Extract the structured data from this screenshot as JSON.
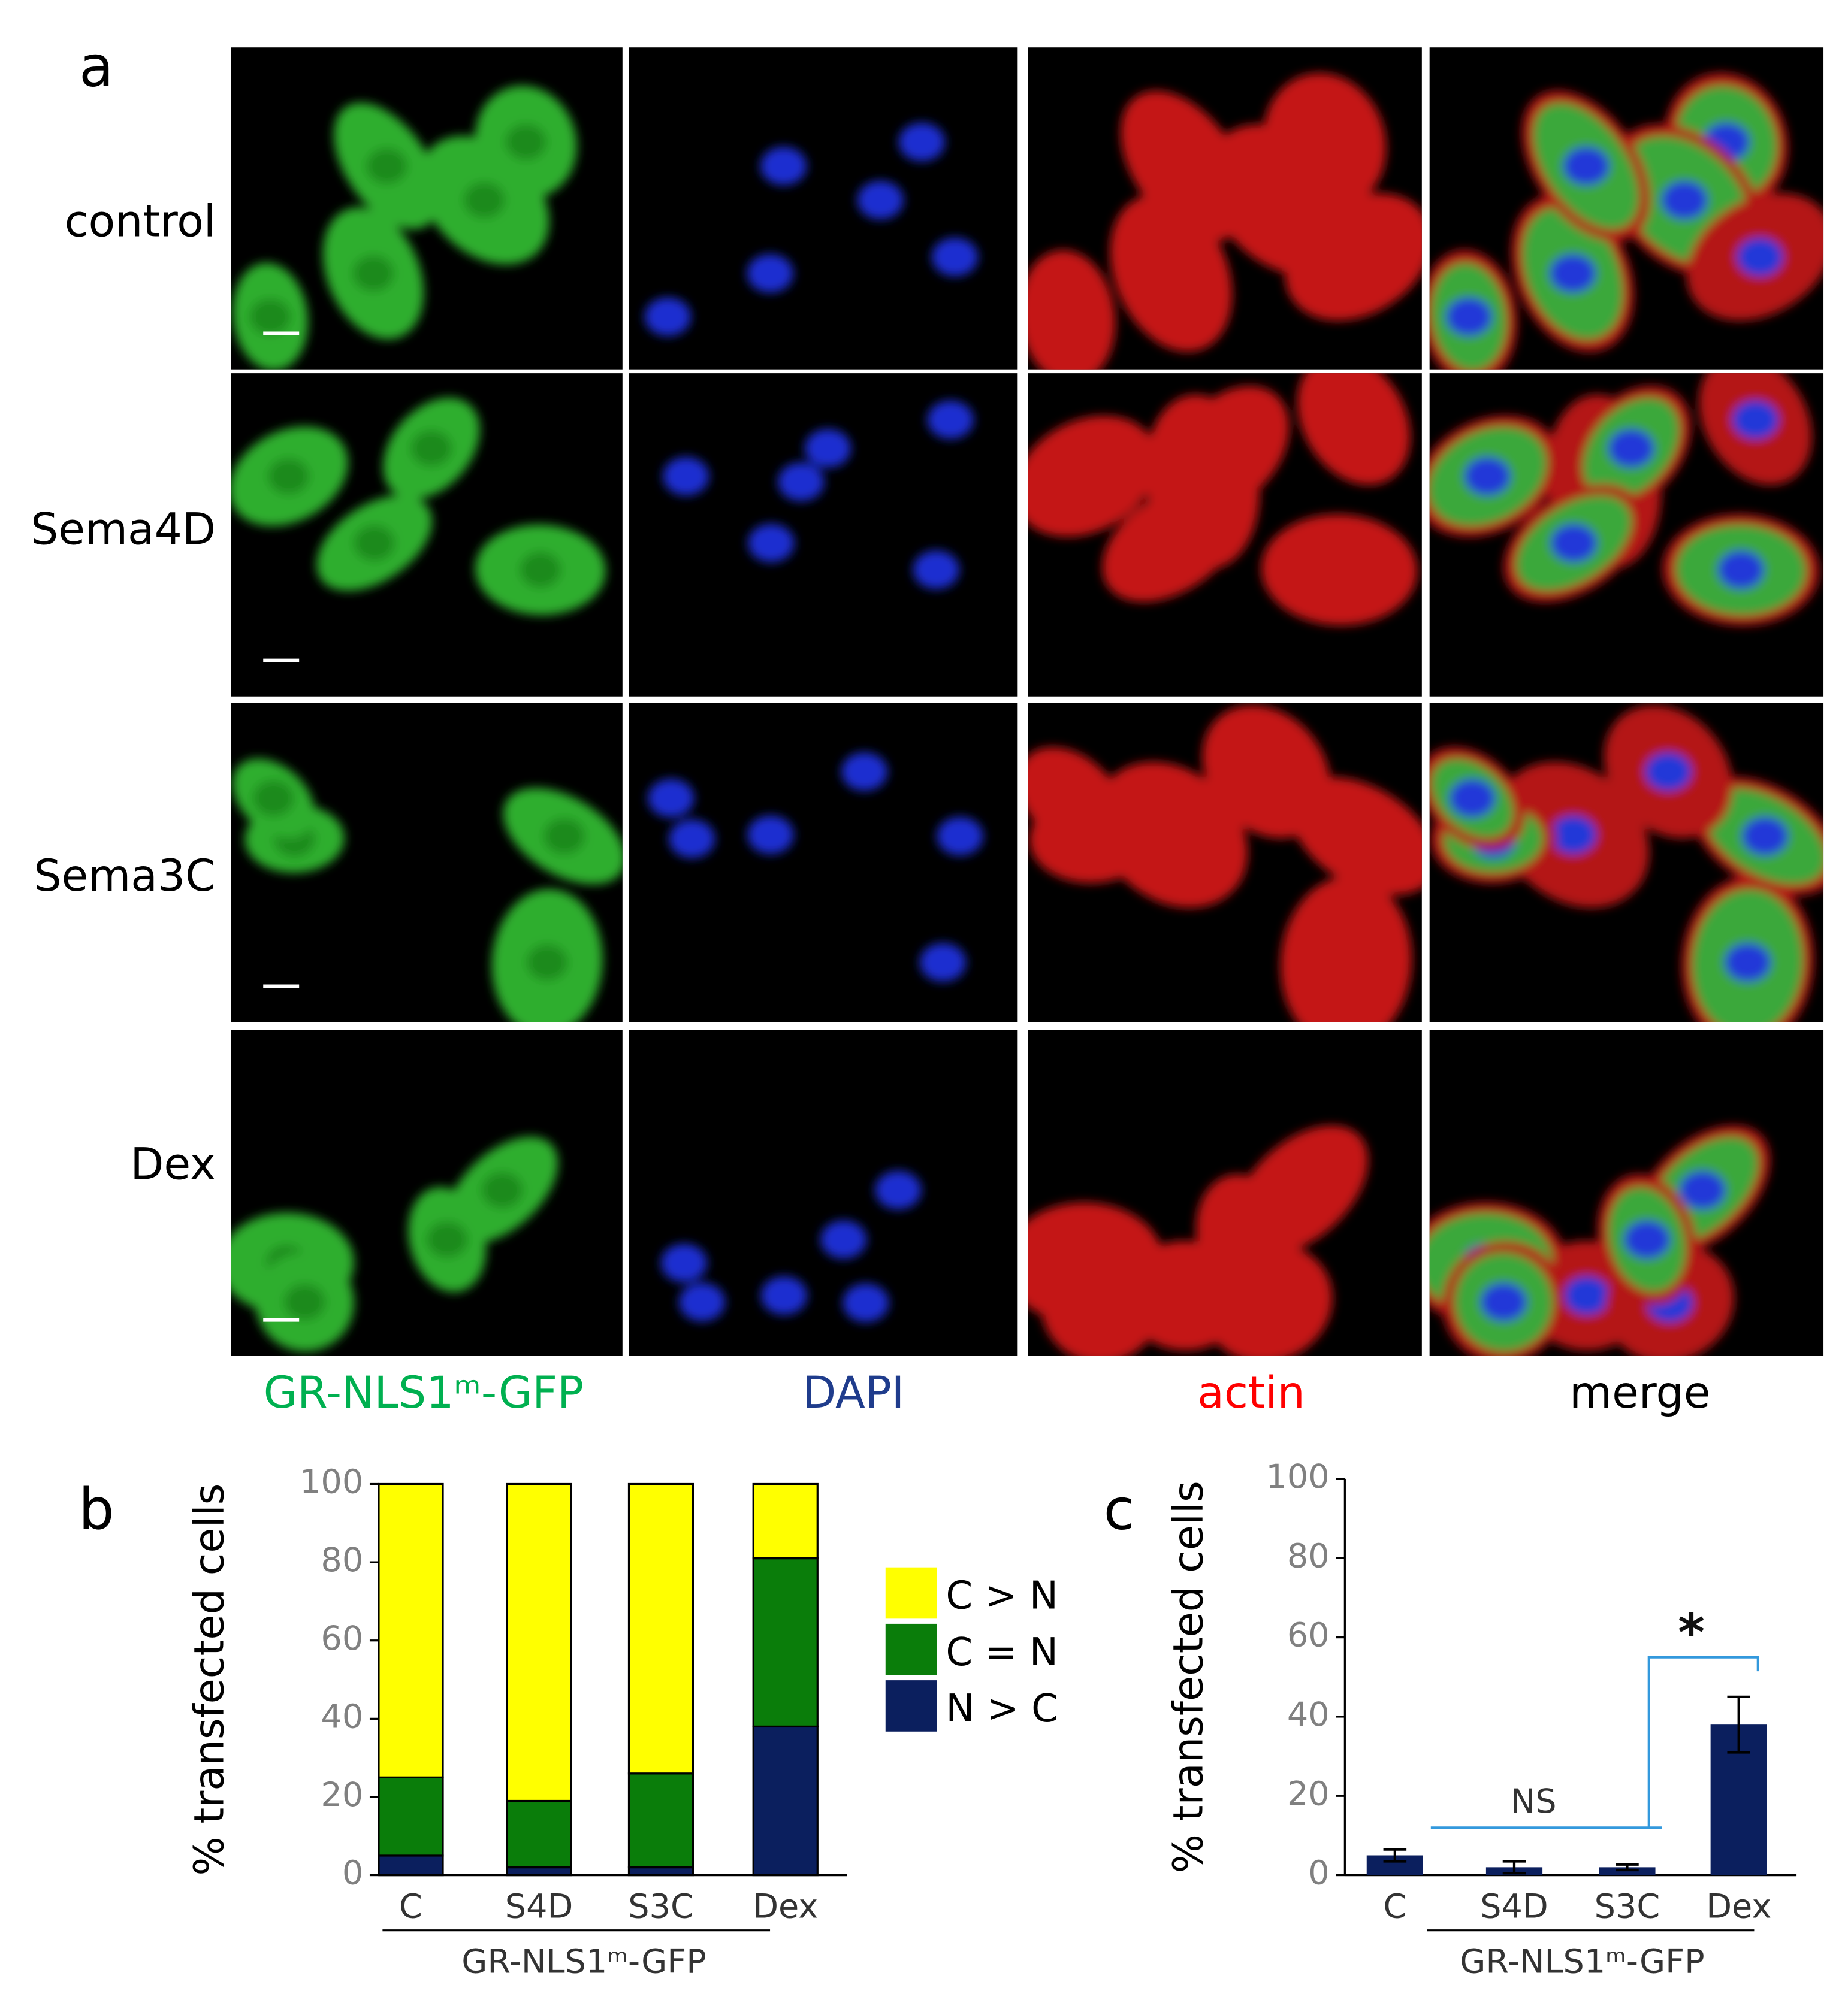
{
  "figure": {
    "panel_labels": [
      "a",
      "b",
      "c"
    ],
    "rows": [
      "control",
      "Sema4D",
      "Sema3C",
      "Dex"
    ],
    "columns": [
      {
        "label": "GR-NLS1ᵐ-GFP",
        "color": "#00b050"
      },
      {
        "label": "DAPI",
        "color": "#1f3c8c"
      },
      {
        "label": "actin",
        "color": "#ff0000"
      },
      {
        "label": "merge",
        "color": "#000000"
      }
    ]
  },
  "chart_data": [
    {
      "type": "stacked_bar",
      "ylabel": "% transfected cells",
      "group_label": "GR-NLS1ᵐ-GFP",
      "categories": [
        "C",
        "S4D",
        "S3C",
        "Dex"
      ],
      "series": [
        {
          "name": "N > C",
          "color": "#0b1f5e",
          "values": [
            5,
            2,
            2,
            38
          ]
        },
        {
          "name": "C = N",
          "color": "#0a7d0a",
          "values": [
            20,
            17,
            24,
            43
          ]
        },
        {
          "name": "C > N",
          "color": "#ffff00",
          "values": [
            75,
            81,
            74,
            19
          ]
        }
      ],
      "ylim": [
        0,
        100
      ],
      "yticks": [
        0,
        20,
        40,
        60,
        80,
        100
      ]
    },
    {
      "type": "bar",
      "ylabel": "% transfected cells",
      "group_label": "GR-NLS1ᵐ-GFP",
      "categories": [
        "C",
        "S4D",
        "S3C",
        "Dex"
      ],
      "values": [
        5,
        2,
        2,
        38
      ],
      "errors": [
        1.5,
        1.5,
        0.7,
        7
      ],
      "color": "#0b1f5e",
      "annotations": [
        "NS",
        "*"
      ],
      "ylim": [
        0,
        100
      ],
      "yticks": [
        0,
        20,
        40,
        60,
        80,
        100
      ]
    }
  ]
}
